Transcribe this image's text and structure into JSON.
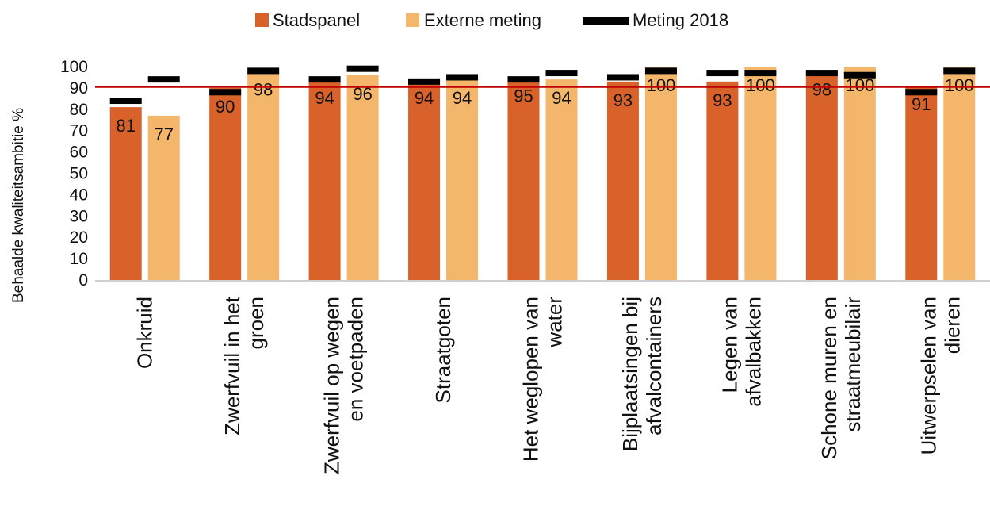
{
  "chart_data": {
    "type": "bar",
    "ylabel": "Behaalde kwaliteitsambitie %",
    "ylim": [
      0,
      100
    ],
    "yticks": [
      0,
      10,
      20,
      30,
      40,
      50,
      60,
      70,
      80,
      90,
      100
    ],
    "grid": false,
    "legend_position": "top",
    "reference_line": {
      "value": 90.5,
      "color": "#C00000"
    },
    "categories": [
      [
        "Onkruid"
      ],
      [
        "Zwerfvuil in het",
        "groen"
      ],
      [
        "Zwerfvuil op wegen",
        "en voetpaden"
      ],
      [
        "Straatgoten"
      ],
      [
        "Het weglopen van",
        "water"
      ],
      [
        "Bijplaatsingen bij",
        "afvalcontainers"
      ],
      [
        "Legen van",
        "afvalbakken"
      ],
      [
        "Schone muren en",
        "straatmeubilair"
      ],
      [
        "Uitwerpselen van",
        "dieren"
      ]
    ],
    "series": [
      {
        "name": "Stadspanel",
        "color": "#D9622B",
        "values": [
          81,
          90,
          94,
          94,
          95,
          93,
          93,
          98,
          91
        ],
        "labels": [
          "81",
          "90",
          "94",
          "94",
          "95",
          "93",
          "93",
          "98",
          "91"
        ],
        "meting_2018": [
          84,
          88,
          94,
          93,
          94,
          95,
          97,
          97,
          88
        ]
      },
      {
        "name": "Externe meting",
        "color": "#F4B66A",
        "values": [
          77,
          98,
          96,
          94,
          94,
          100,
          100,
          100,
          100
        ],
        "labels": [
          "77",
          "98",
          "96",
          "94",
          "94",
          "100",
          "100",
          "100",
          "100"
        ],
        "meting_2018": [
          94,
          98,
          99,
          95,
          97,
          98,
          97,
          96,
          98
        ]
      }
    ],
    "marker_series": {
      "name": "Meting 2018",
      "color": "#000000"
    }
  }
}
